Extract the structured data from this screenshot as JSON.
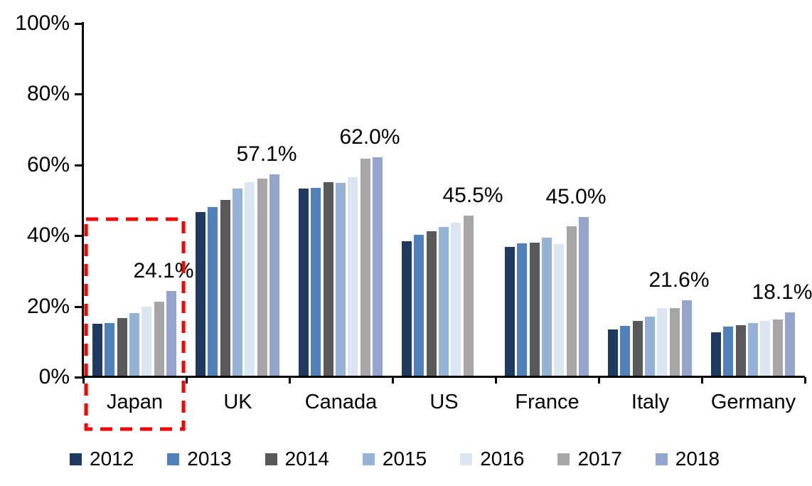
{
  "chart_data": {
    "type": "bar",
    "title": "",
    "xlabel": "",
    "ylabel": "",
    "categories": [
      "Japan",
      "UK",
      "Canada",
      "US",
      "France",
      "Italy",
      "Germany"
    ],
    "series": [
      {
        "name": "2012",
        "color": "#1F3A60",
        "values": [
          14.9,
          46.4,
          53.1,
          38.3,
          36.6,
          13.2,
          12.5
        ]
      },
      {
        "name": "2013",
        "color": "#4F81BD",
        "values": [
          15.1,
          47.8,
          53.4,
          40.1,
          37.7,
          14.2,
          14.0
        ]
      },
      {
        "name": "2014",
        "color": "#595959",
        "values": [
          16.6,
          50.0,
          55.0,
          41.0,
          37.8,
          15.6,
          14.5
        ]
      },
      {
        "name": "2015",
        "color": "#95B3D7",
        "values": [
          18.0,
          53.1,
          54.7,
          42.2,
          39.3,
          17.0,
          15.0
        ]
      },
      {
        "name": "2016",
        "color": "#DCE6F2",
        "values": [
          19.8,
          54.9,
          56.3,
          43.4,
          37.4,
          19.3,
          15.6
        ]
      },
      {
        "name": "2017",
        "color": "#A6A6A6",
        "values": [
          21.1,
          56.0,
          61.6,
          45.5,
          42.4,
          19.4,
          16.0
        ]
      },
      {
        "name": "2018",
        "color": "#94A5CE",
        "values": [
          24.1,
          57.1,
          62.0,
          null,
          45.0,
          21.6,
          18.1
        ]
      }
    ],
    "data_labels": [
      "24.1%",
      "57.1%",
      "62.0%",
      "45.5%",
      "45.0%",
      "21.6%",
      "18.1%"
    ],
    "ylim": [
      0,
      100
    ],
    "yticks": [
      "0%",
      "20%",
      "40%",
      "60%",
      "80%",
      "100%"
    ],
    "grid": false,
    "legend_position": "bottom",
    "legend_entries": [
      "2012",
      "2013",
      "2014",
      "2015",
      "2016",
      "2017",
      "2018"
    ],
    "highlight": {
      "category": "Japan",
      "shape": "red-dashed-rectangle",
      "color": "#FF0000"
    }
  }
}
